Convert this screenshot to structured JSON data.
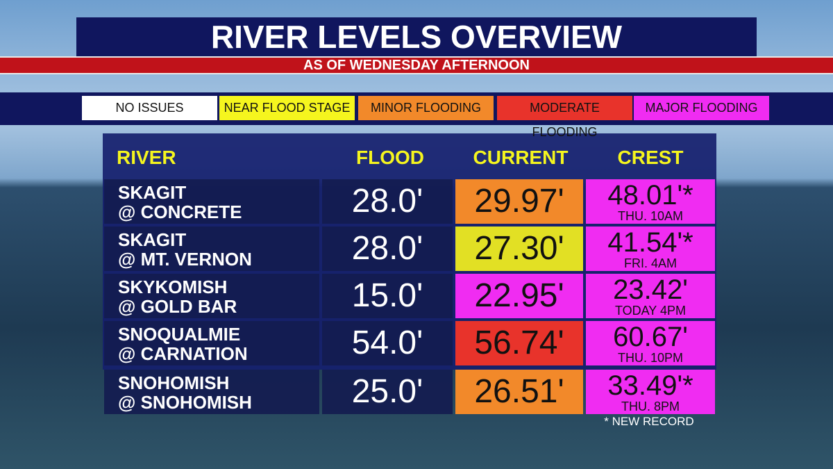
{
  "header": {
    "title": "RIVER LEVELS OVERVIEW",
    "subtitle": "AS OF WEDNESDAY AFTERNOON"
  },
  "legend": [
    {
      "label": "NO ISSUES",
      "color": "#ffffff"
    },
    {
      "label": "NEAR FLOOD STAGE",
      "color": "#f5f51e"
    },
    {
      "label": "MINOR FLOODING",
      "color": "#f2892a"
    },
    {
      "label": "MODERATE FLOODING",
      "color": "#e8332b"
    },
    {
      "label": "MAJOR FLOODING",
      "color": "#f02cf2"
    }
  ],
  "table": {
    "columns": [
      "RIVER",
      "FLOOD",
      "CURRENT",
      "CREST"
    ],
    "rows": [
      {
        "river": [
          "SKAGIT",
          "@ CONCRETE"
        ],
        "flood": "28.0'",
        "current": "29.97'",
        "current_color": "#f2892a",
        "crest": "48.01'*",
        "crest_time": "THU. 10AM",
        "crest_color": "#f02cf2"
      },
      {
        "river": [
          "SKAGIT",
          "@ MT. VERNON"
        ],
        "flood": "28.0'",
        "current": "27.30'",
        "current_color": "#e2e024",
        "crest": "41.54'*",
        "crest_time": "FRI. 4AM",
        "crest_color": "#f02cf2"
      },
      {
        "river": [
          "SKYKOMISH",
          "@ GOLD BAR"
        ],
        "flood": "15.0'",
        "current": "22.95'",
        "current_color": "#f02cf2",
        "crest": "23.42'",
        "crest_time": "TODAY 4PM",
        "crest_color": "#f02cf2"
      },
      {
        "river": [
          "SNOQUALMIE",
          "@ CARNATION"
        ],
        "flood": "54.0'",
        "current": "56.74'",
        "current_color": "#e8332b",
        "crest": "60.67'",
        "crest_time": "THU. 10PM",
        "crest_color": "#f02cf2"
      },
      {
        "river": [
          "SNOHOMISH",
          "@ SNOHOMISH"
        ],
        "flood": "25.0'",
        "current": "26.51'",
        "current_color": "#f2892a",
        "crest": "33.49'*",
        "crest_time": "THU. 8PM",
        "crest_color": "#f02cf2"
      }
    ]
  },
  "footnote": "* NEW RECORD"
}
